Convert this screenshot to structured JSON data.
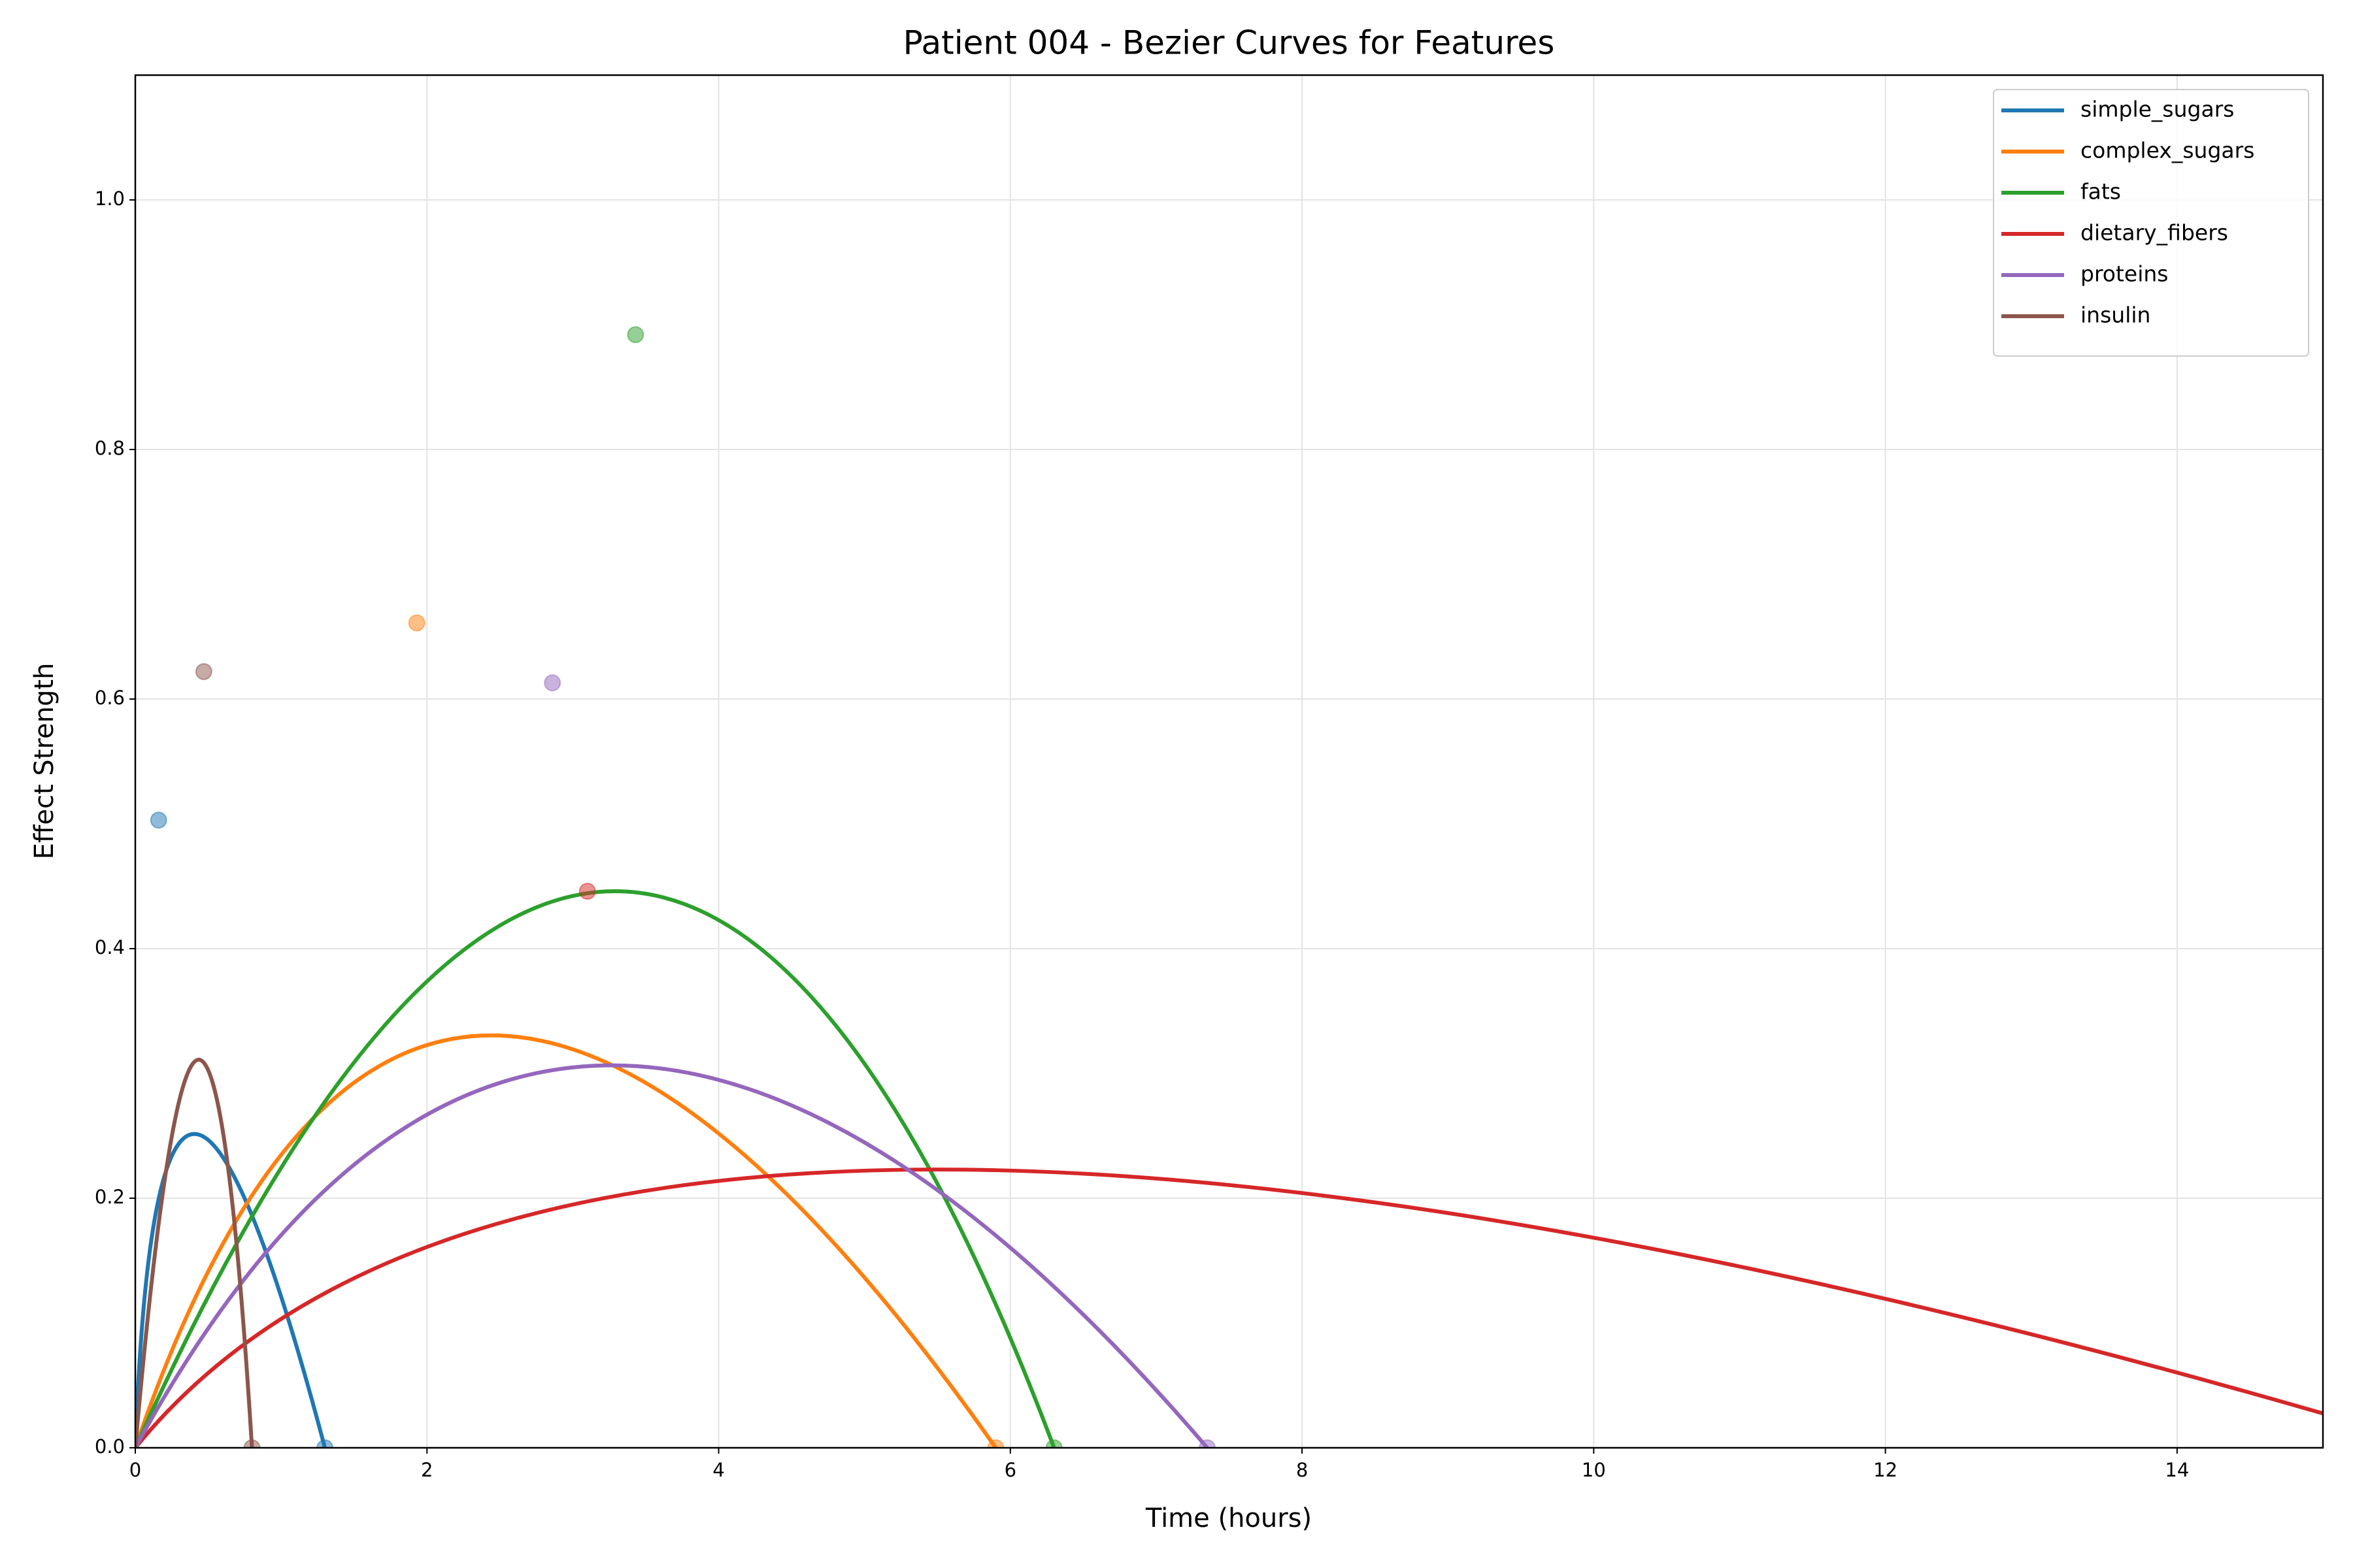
{
  "chart_data": {
    "type": "bezier",
    "title": "Patient 004 - Bezier Curves for Features",
    "xlabel": "Time (hours)",
    "ylabel": "Effect Strength",
    "xlim": [
      0,
      15
    ],
    "xticks": [
      0,
      2,
      4,
      6,
      8,
      10,
      12,
      14
    ],
    "ylim": [
      0,
      1.1
    ],
    "yticks": [
      {
        "value": 0,
        "label": "0.0"
      },
      0.2,
      0.4,
      0.6,
      0.8,
      {
        "value": 1,
        "label": "1.0"
      }
    ],
    "grid": true,
    "legend": "upper right",
    "series": [
      {
        "name": "simple_sugars",
        "color": "#1f77b4",
        "x": [
          0,
          0.16,
          1.3
        ],
        "values": [
          0,
          0.503,
          0
        ]
      },
      {
        "name": "complex_sugars",
        "color": "#ff7f0e",
        "x": [
          0,
          1.93,
          5.9
        ],
        "values": [
          0,
          0.661,
          0
        ]
      },
      {
        "name": "fats",
        "color": "#2ca02c",
        "x": [
          0,
          3.43,
          6.3
        ],
        "values": [
          0,
          0.892,
          0
        ]
      },
      {
        "name": "dietary_fibers",
        "color": "#d62728",
        "x": [
          0,
          3.1,
          15.8
        ],
        "values": [
          0,
          0.446,
          0
        ]
      },
      {
        "name": "proteins",
        "color": "#9467bd",
        "x": [
          0,
          2.86,
          7.35
        ],
        "values": [
          0,
          0.613,
          0
        ]
      },
      {
        "name": "insulin",
        "color": "#8c564b",
        "x": [
          0,
          0.47,
          0.8
        ],
        "values": [
          0,
          0.622,
          0
        ]
      }
    ]
  }
}
